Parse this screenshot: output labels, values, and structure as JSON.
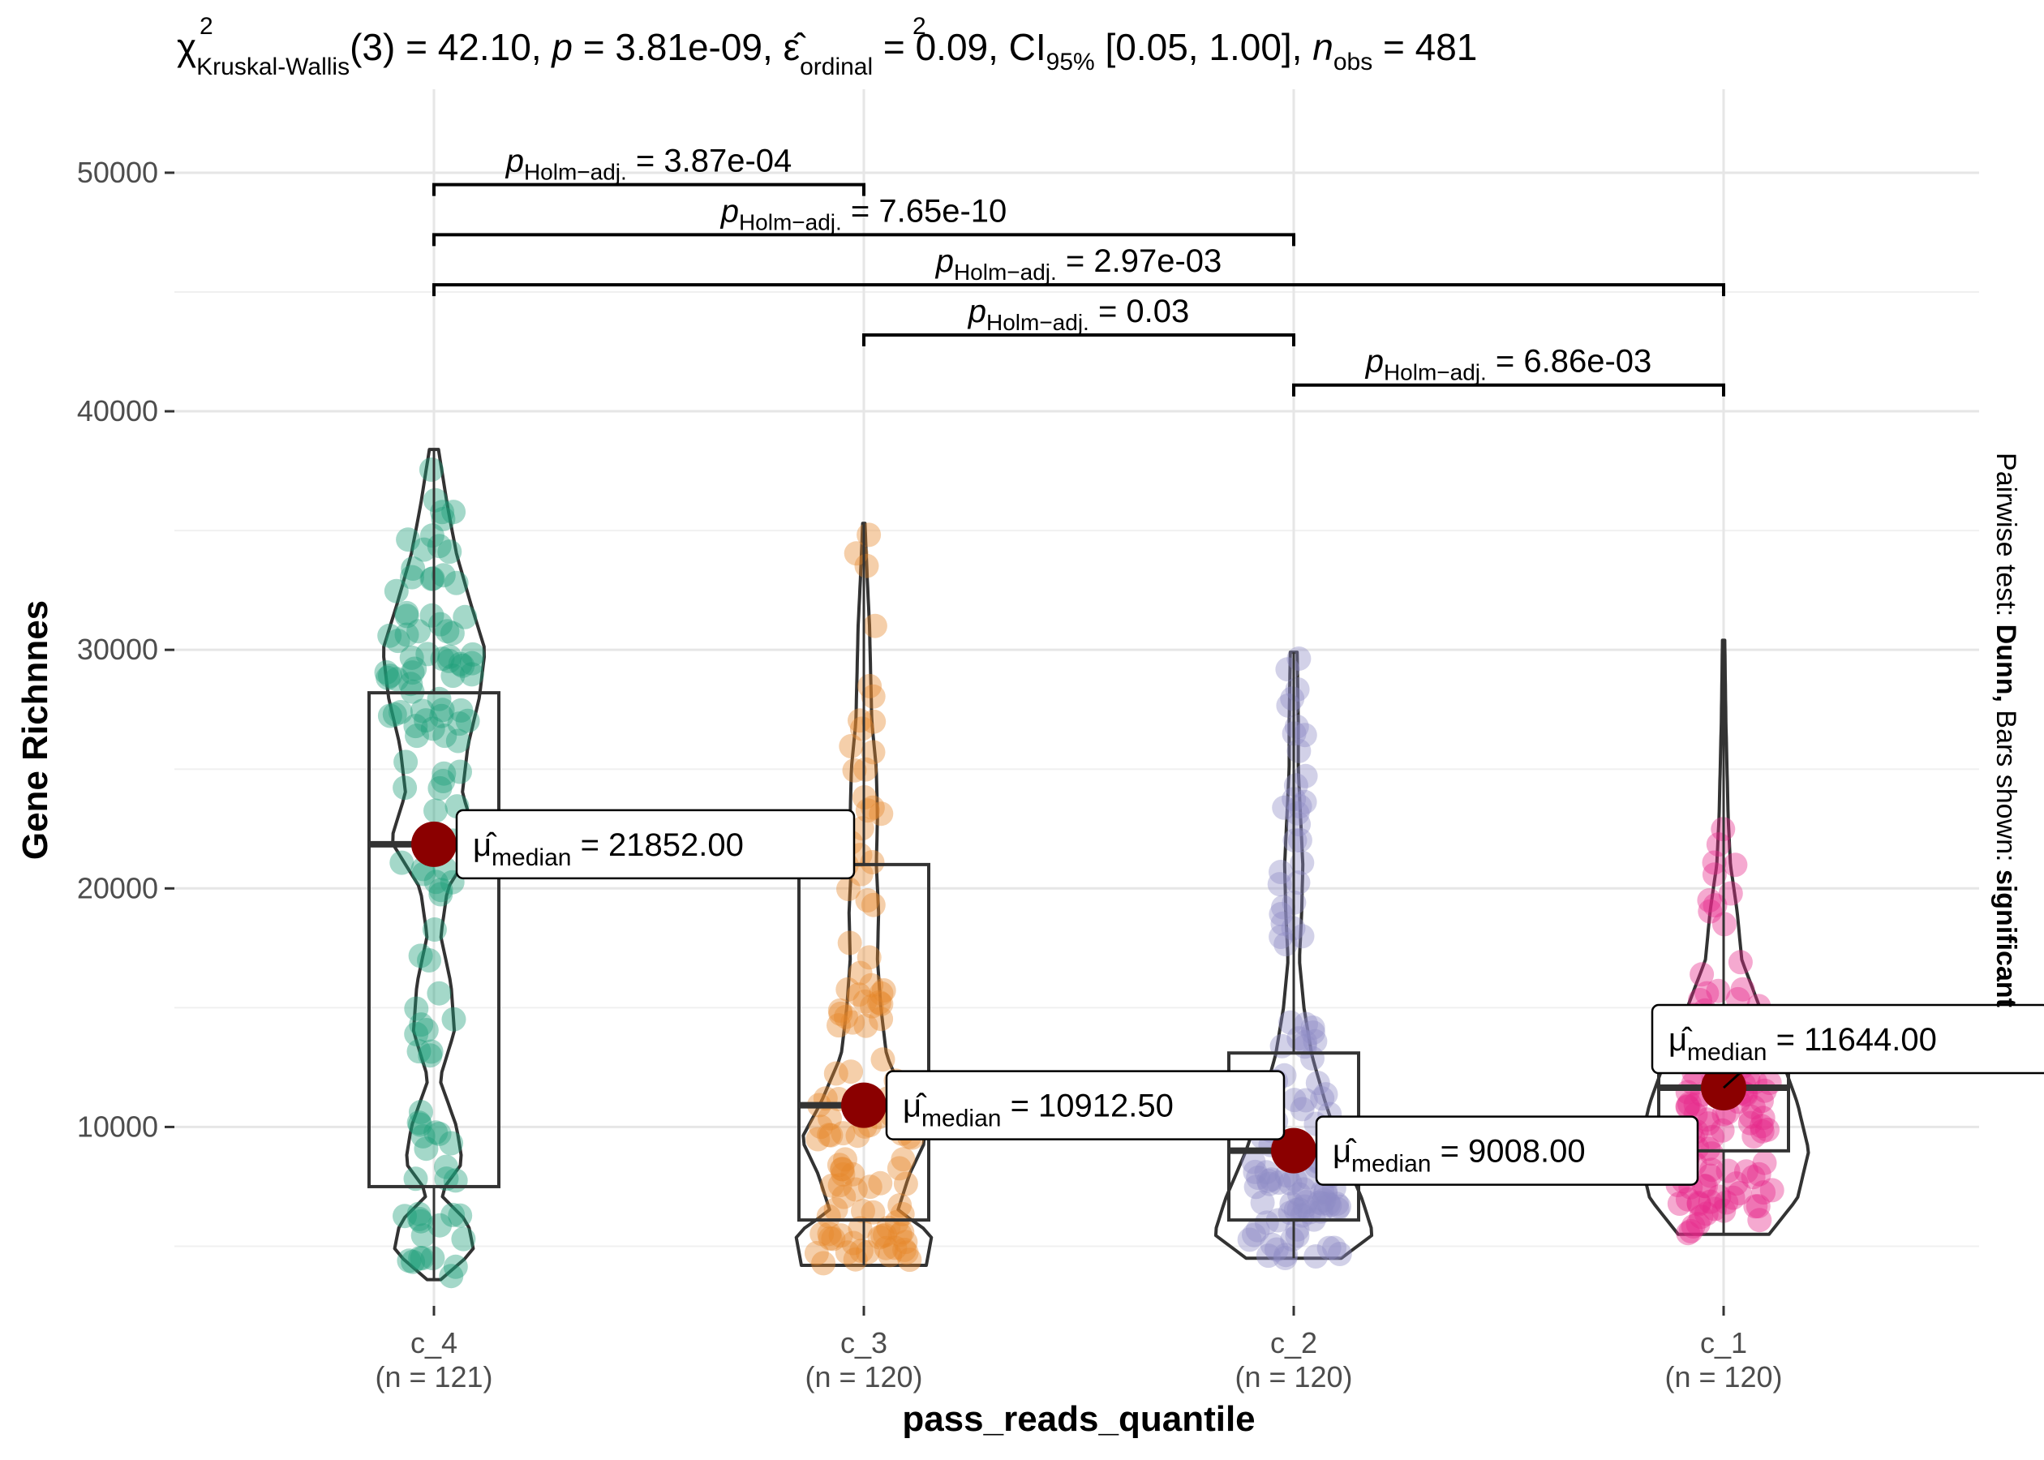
{
  "chart_data": {
    "type": "violin-box",
    "title_parts": {
      "chi": "χ",
      "chi_sup": "2",
      "chi_sub": "Kruskal-Wallis",
      "df": "(3) = 42.10, ",
      "p_symbol": "p",
      "p_value": " = 3.81e-09, ",
      "eps": "ε̂",
      "eps_sup": "2",
      "eps_sub": "ordinal",
      "eps_value": " = 0.09, CI",
      "ci_sub": "95%",
      "ci_value": " [0.05, 1.00], ",
      "n_symbol": "n",
      "n_sub": "obs",
      "n_value": " = 481"
    },
    "xlabel": "pass_reads_quantile",
    "ylabel": "Gene Richnnes",
    "side_caption": {
      "prefix": "Pairwise test: ",
      "test": "Dunn,",
      "middle": " Bars shown: ",
      "bars": "significant"
    },
    "ylim": [
      2500,
      53500
    ],
    "y_ticks": [
      {
        "value": 10000,
        "label": "10000"
      },
      {
        "value": 20000,
        "label": "20000"
      },
      {
        "value": 30000,
        "label": "30000"
      },
      {
        "value": 40000,
        "label": "40000"
      },
      {
        "value": 50000,
        "label": "50000"
      }
    ],
    "grid": true,
    "categories": [
      {
        "name": "c_4",
        "n_label": "(n = 121)",
        "color": "#1b9e77",
        "min": 3600,
        "q1": 7500,
        "median": 21852,
        "q3": 28200,
        "max": 38400,
        "median_label": "21852.00",
        "density": [
          [
            3600,
            0.06
          ],
          [
            4800,
            0.35
          ],
          [
            6000,
            0.3
          ],
          [
            7200,
            0.05
          ],
          [
            8500,
            0.25
          ],
          [
            10000,
            0.2
          ],
          [
            12000,
            0.05
          ],
          [
            14000,
            0.18
          ],
          [
            16000,
            0.15
          ],
          [
            18000,
            0.06
          ],
          [
            20000,
            0.12
          ],
          [
            22000,
            0.38
          ],
          [
            24000,
            0.25
          ],
          [
            26000,
            0.3
          ],
          [
            28000,
            0.4
          ],
          [
            30000,
            0.45
          ],
          [
            32000,
            0.32
          ],
          [
            34000,
            0.2
          ],
          [
            36000,
            0.12
          ],
          [
            38400,
            0.04
          ]
        ]
      },
      {
        "name": "c_3",
        "n_label": "(n = 120)",
        "color": "#e6862a",
        "min": 4200,
        "q1": 6100,
        "median": 10912.5,
        "q3": 21000,
        "max": 35300,
        "median_label": "10912.50",
        "density": [
          [
            4200,
            0.55
          ],
          [
            5500,
            0.6
          ],
          [
            6500,
            0.3
          ],
          [
            8000,
            0.4
          ],
          [
            9500,
            0.55
          ],
          [
            11000,
            0.38
          ],
          [
            13000,
            0.2
          ],
          [
            15000,
            0.15
          ],
          [
            17000,
            0.12
          ],
          [
            19000,
            0.13
          ],
          [
            21000,
            0.11
          ],
          [
            23000,
            0.12
          ],
          [
            25000,
            0.11
          ],
          [
            27000,
            0.07
          ],
          [
            29000,
            0.06
          ],
          [
            31000,
            0.05
          ],
          [
            33000,
            0.03
          ],
          [
            35300,
            0.01
          ]
        ]
      },
      {
        "name": "c_2",
        "n_label": "(n = 120)",
        "color": "#8e8cc6",
        "min": 4500,
        "q1": 6100,
        "median": 9008,
        "q3": 13100,
        "max": 29900,
        "median_label": "9008.00",
        "density": [
          [
            4500,
            0.42
          ],
          [
            5500,
            0.7
          ],
          [
            7000,
            0.6
          ],
          [
            9000,
            0.42
          ],
          [
            11000,
            0.28
          ],
          [
            13000,
            0.16
          ],
          [
            15000,
            0.09
          ],
          [
            17000,
            0.05
          ],
          [
            19000,
            0.07
          ],
          [
            21000,
            0.08
          ],
          [
            23000,
            0.06
          ],
          [
            25000,
            0.04
          ],
          [
            27000,
            0.04
          ],
          [
            29900,
            0.03
          ]
        ]
      },
      {
        "name": "c_1",
        "n_label": "(n = 120)",
        "color": "#e7298a",
        "min": 5500,
        "q1": 9000,
        "median": 11644,
        "q3": 13400,
        "max": 30400,
        "median_label": "11644.00",
        "density": [
          [
            5500,
            0.4
          ],
          [
            7000,
            0.65
          ],
          [
            9000,
            0.75
          ],
          [
            11000,
            0.65
          ],
          [
            13000,
            0.5
          ],
          [
            15000,
            0.32
          ],
          [
            17000,
            0.16
          ],
          [
            19000,
            0.12
          ],
          [
            21000,
            0.06
          ],
          [
            23000,
            0.04
          ],
          [
            25000,
            0.03
          ],
          [
            27000,
            0.02
          ],
          [
            30400,
            0.01
          ]
        ]
      }
    ],
    "pairwise": [
      {
        "from": 0,
        "to": 1,
        "y": 49500,
        "symbol": "p",
        "sub": "Holm−adj.",
        "value": " = 3.87e-04"
      },
      {
        "from": 0,
        "to": 2,
        "y": 47400,
        "symbol": "p",
        "sub": "Holm−adj.",
        "value": " = 7.65e-10"
      },
      {
        "from": 0,
        "to": 3,
        "y": 45300,
        "symbol": "p",
        "sub": "Holm−adj.",
        "value": " = 2.97e-03"
      },
      {
        "from": 1,
        "to": 2,
        "y": 43200,
        "symbol": "p",
        "sub": "Holm−adj.",
        "value": " = 0.03"
      },
      {
        "from": 2,
        "to": 3,
        "y": 41100,
        "symbol": "p",
        "sub": "Holm−adj.",
        "value": " = 6.86e-03"
      }
    ],
    "median_marker_color": "#8b0000",
    "median_label_prefix": "μ̂",
    "median_label_sub": "median"
  }
}
